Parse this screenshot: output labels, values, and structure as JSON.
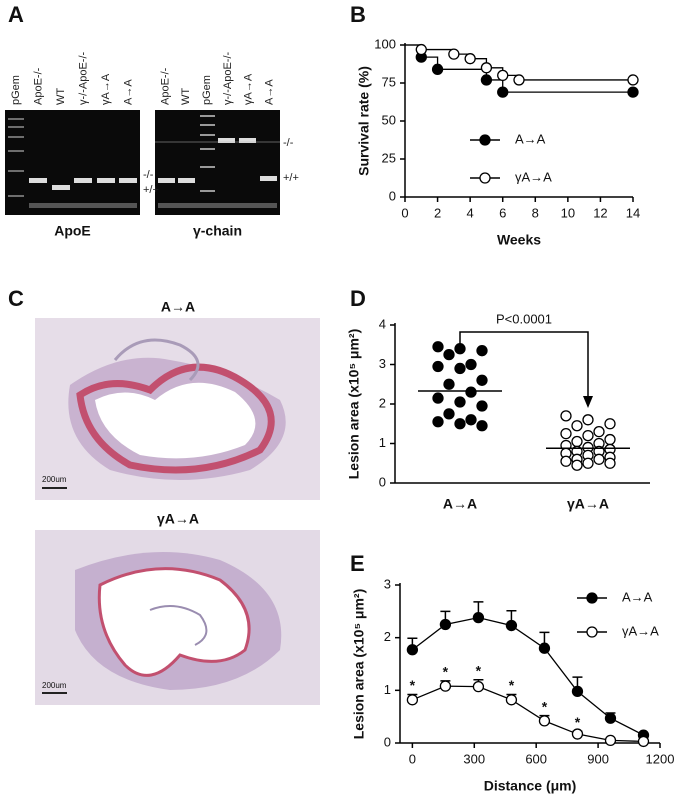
{
  "gels": {
    "panel": "A",
    "gels": [
      {
        "title": "ApoE",
        "lanes": [
          "pGem",
          "ApoE-/-",
          "WT",
          "γ-/-ApoE-/-",
          "γA→A",
          "A→A"
        ],
        "markers": [
          "-/-",
          "+/+"
        ]
      },
      {
        "title": "γ-chain",
        "lanes": [
          "ApoE-/-",
          "WT",
          "pGem",
          "γ-/-ApoE-/-",
          "γA→A",
          "A→A"
        ],
        "markers": [
          "-/-",
          "+/+"
        ]
      }
    ]
  },
  "histology": {
    "panel": "C",
    "images": [
      {
        "title": "A→A",
        "scale": "200um"
      },
      {
        "title": "γA→A",
        "scale": "200um"
      }
    ]
  },
  "chart_data": [
    {
      "type": "step-line",
      "panel": "B",
      "ylabel": "Survival rate (%)",
      "xlabel": "Weeks",
      "xlim": [
        0,
        14
      ],
      "xticks": [
        0,
        2,
        4,
        6,
        8,
        10,
        12,
        14
      ],
      "ylim": [
        0,
        100
      ],
      "yticks": [
        0,
        25,
        50,
        75,
        100
      ],
      "series": [
        {
          "name": "A→A",
          "color": "#000",
          "marker": "filled",
          "x": [
            0,
            1,
            2,
            5,
            6,
            14
          ],
          "values": [
            100,
            92,
            84,
            77,
            69,
            69
          ]
        },
        {
          "name": "γA→A",
          "color": "#000",
          "marker": "open",
          "x": [
            0,
            1,
            3,
            4,
            5,
            6,
            7,
            14
          ],
          "values": [
            100,
            97,
            94,
            91,
            85,
            80,
            77,
            77
          ]
        }
      ]
    },
    {
      "type": "dot-plot",
      "panel": "D",
      "ylabel": "Lesion area (x10⁵ μm²)",
      "annotation": "P<0.0001",
      "categories": [
        "A→A",
        "γA→A"
      ],
      "ylim": [
        0,
        4
      ],
      "yticks": [
        0,
        1,
        2,
        3,
        4
      ],
      "groups": [
        {
          "marker": "filled",
          "values": [
            3.45,
            3.4,
            3.35,
            3.25,
            3.0,
            2.95,
            2.9,
            2.6,
            2.5,
            2.3,
            2.15,
            2.05,
            1.95,
            1.75,
            1.6,
            1.55,
            1.5,
            1.45
          ]
        },
        {
          "marker": "open",
          "values": [
            1.7,
            1.6,
            1.5,
            1.45,
            1.3,
            1.25,
            1.2,
            1.1,
            1.05,
            1.0,
            0.95,
            0.9,
            0.85,
            0.8,
            0.8,
            0.75,
            0.7,
            0.65,
            0.6,
            0.6,
            0.55,
            0.5,
            0.5,
            0.45
          ]
        }
      ],
      "means": [
        2.33,
        0.88
      ]
    },
    {
      "type": "line",
      "panel": "E",
      "ylabel": "Lesion area (x10⁵ μm²)",
      "xlabel": "Distance (μm)",
      "xlim": [
        -60,
        1200
      ],
      "xticks": [
        0,
        300,
        600,
        900,
        1200
      ],
      "ylim": [
        0,
        3
      ],
      "yticks": [
        0,
        1,
        2,
        3
      ],
      "x": [
        0,
        160,
        320,
        480,
        640,
        800,
        960,
        1120
      ],
      "series": [
        {
          "name": "A→A",
          "marker": "filled",
          "values": [
            1.77,
            2.25,
            2.38,
            2.23,
            1.8,
            0.98,
            0.47,
            0.15
          ],
          "errors": [
            0.22,
            0.25,
            0.3,
            0.28,
            0.3,
            0.27,
            0.1,
            0.03
          ]
        },
        {
          "name": "γA→A",
          "marker": "open",
          "values": [
            0.82,
            1.08,
            1.07,
            0.82,
            0.42,
            0.17,
            0.05,
            0.03
          ],
          "errors": [
            0.1,
            0.1,
            0.13,
            0.1,
            0.1,
            0.05,
            0.02,
            0.01
          ],
          "significance": [
            "*",
            "*",
            "*",
            "*",
            "*",
            "*",
            null,
            null
          ]
        }
      ]
    }
  ]
}
